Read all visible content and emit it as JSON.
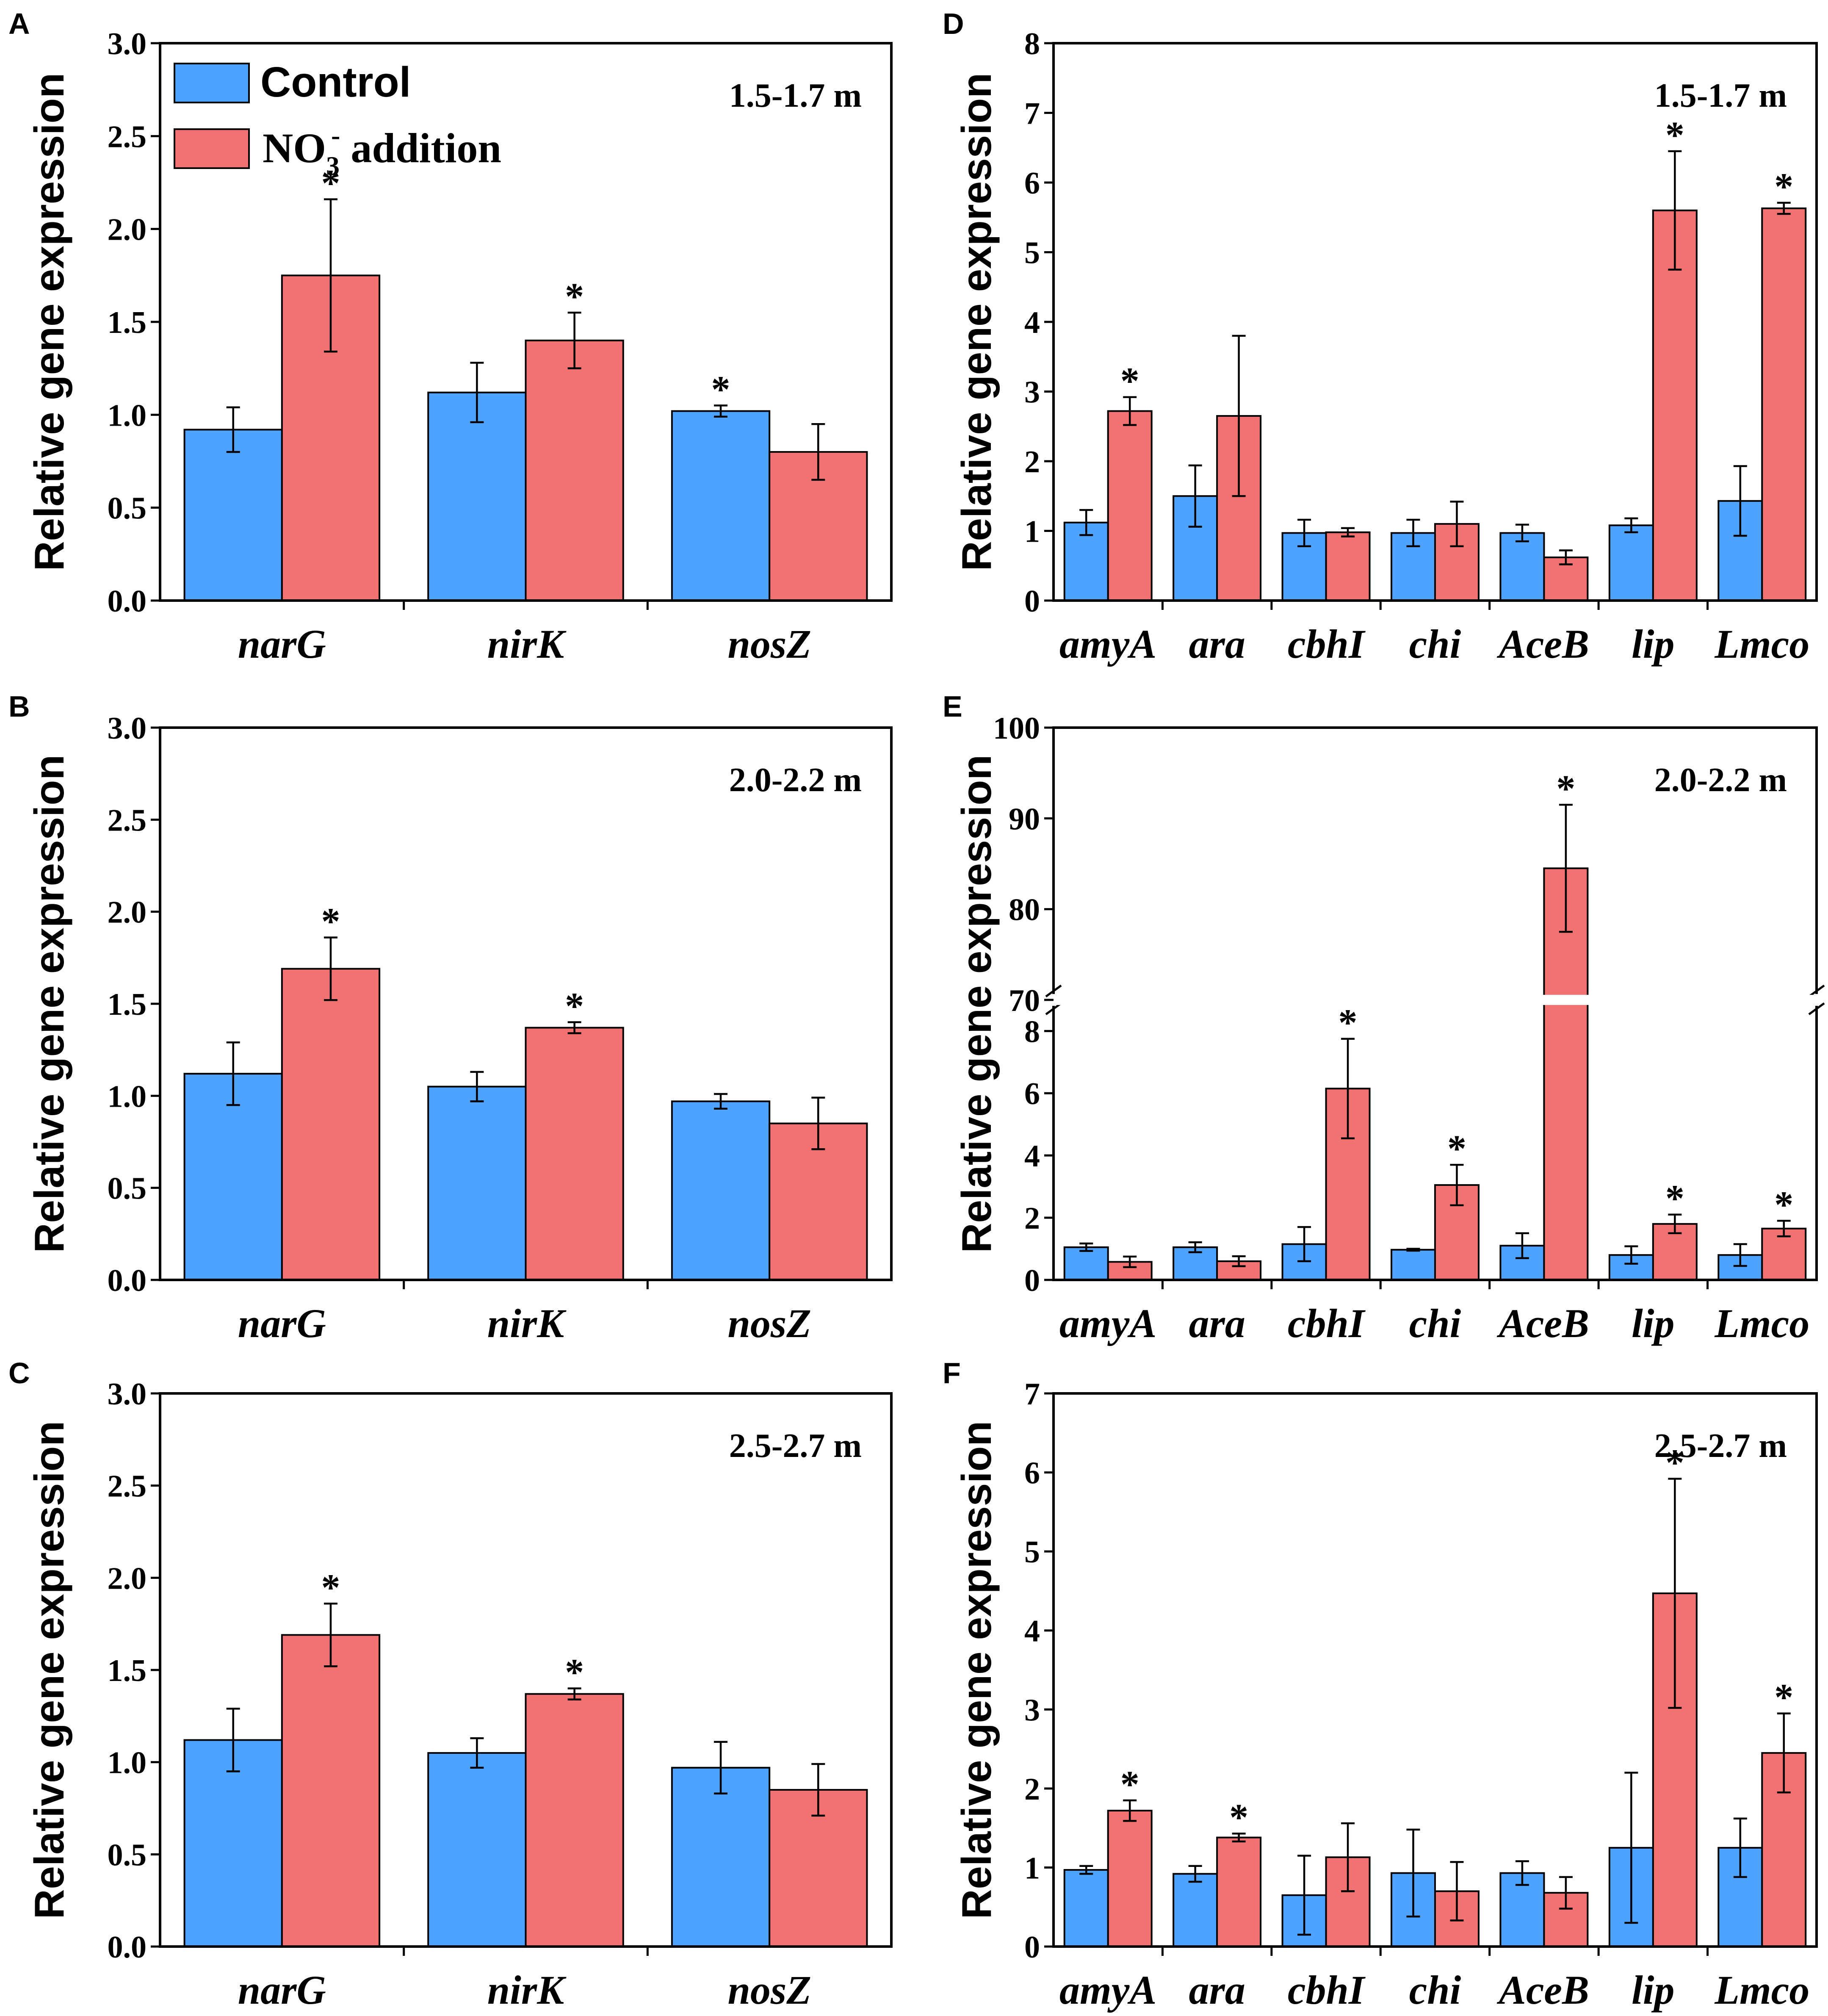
{
  "colors": {
    "control": "#4da3ff",
    "nitrate": "#f27272",
    "axis": "#000000"
  },
  "legend": {
    "control_label": "Control",
    "nitrate_label_main": "NO",
    "nitrate_label_sub": "3",
    "nitrate_label_sup": "-",
    "nitrate_label_tail": " addition"
  },
  "chart_data": [
    {
      "panel": "A",
      "type": "bar",
      "depth": "1.5-1.7 m",
      "ylabel": "Relative gene expression",
      "ylim": [
        0,
        3.0
      ],
      "yticks": [
        "0.0",
        "0.5",
        "1.0",
        "1.5",
        "2.0",
        "2.5",
        "3.0"
      ],
      "categories": [
        "narG",
        "nirK",
        "nosZ"
      ],
      "series": [
        {
          "name": "Control",
          "values": [
            0.92,
            1.12,
            1.02
          ],
          "errors": [
            0.12,
            0.16,
            0.03
          ],
          "sig": [
            false,
            false,
            true
          ]
        },
        {
          "name": "NO3- addition",
          "values": [
            1.75,
            1.4,
            0.8
          ],
          "errors": [
            0.41,
            0.15,
            0.15
          ],
          "sig": [
            true,
            true,
            false
          ]
        }
      ]
    },
    {
      "panel": "B",
      "type": "bar",
      "depth": "2.0-2.2 m",
      "ylabel": "Relative gene expression",
      "ylim": [
        0,
        3.0
      ],
      "yticks": [
        "0.0",
        "0.5",
        "1.0",
        "1.5",
        "2.0",
        "2.5",
        "3.0"
      ],
      "categories": [
        "narG",
        "nirK",
        "nosZ"
      ],
      "series": [
        {
          "name": "Control",
          "values": [
            1.12,
            1.05,
            0.97
          ],
          "errors": [
            0.17,
            0.08,
            0.04
          ],
          "sig": [
            false,
            false,
            false
          ]
        },
        {
          "name": "NO3- addition",
          "values": [
            1.69,
            1.37,
            0.85
          ],
          "errors": [
            0.17,
            0.03,
            0.14
          ],
          "sig": [
            true,
            true,
            false
          ]
        }
      ]
    },
    {
      "panel": "C",
      "type": "bar",
      "depth": "2.5-2.7 m",
      "ylabel": "Relative gene expression",
      "ylim": [
        0,
        3.0
      ],
      "yticks": [
        "0.0",
        "0.5",
        "1.0",
        "1.5",
        "2.0",
        "2.5",
        "3.0"
      ],
      "categories": [
        "narG",
        "nirK",
        "nosZ"
      ],
      "series": [
        {
          "name": "Control",
          "values": [
            1.12,
            1.05,
            0.97
          ],
          "errors": [
            0.17,
            0.08,
            0.14
          ],
          "sig": [
            false,
            false,
            false
          ]
        },
        {
          "name": "NO3- addition",
          "values": [
            1.69,
            1.37,
            0.85
          ],
          "errors": [
            0.17,
            0.03,
            0.14
          ],
          "sig": [
            true,
            true,
            false
          ]
        }
      ]
    },
    {
      "panel": "D",
      "type": "bar",
      "depth": "1.5-1.7 m",
      "ylabel": "Relative gene expression",
      "ylim": [
        0,
        8
      ],
      "yticks": [
        "0",
        "1",
        "2",
        "3",
        "4",
        "5",
        "6",
        "7",
        "8"
      ],
      "categories": [
        "amyA",
        "ara",
        "cbhI",
        "chi",
        "AceB",
        "lip",
        "Lmco"
      ],
      "series": [
        {
          "name": "Control",
          "values": [
            1.12,
            1.5,
            0.97,
            0.97,
            0.97,
            1.08,
            1.43
          ],
          "errors": [
            0.18,
            0.44,
            0.19,
            0.19,
            0.12,
            0.1,
            0.5
          ],
          "sig": [
            false,
            false,
            false,
            false,
            false,
            false,
            false
          ]
        },
        {
          "name": "NO3- addition",
          "values": [
            2.72,
            2.65,
            0.98,
            1.1,
            0.62,
            5.6,
            5.63
          ],
          "errors": [
            0.2,
            1.15,
            0.06,
            0.32,
            0.1,
            0.85,
            0.08
          ],
          "sig": [
            true,
            false,
            false,
            false,
            false,
            true,
            true
          ]
        }
      ]
    },
    {
      "panel": "E",
      "type": "bar",
      "depth": "2.0-2.2 m",
      "ylabel": "Relative gene expression",
      "broken_axis": {
        "lower": [
          0,
          9
        ],
        "upper": [
          70,
          100
        ]
      },
      "yticks_lower": [
        "0",
        "2",
        "4",
        "6",
        "8"
      ],
      "yticks_upper": [
        "70",
        "80",
        "90",
        "100"
      ],
      "categories": [
        "amyA",
        "ara",
        "cbhI",
        "chi",
        "AceB",
        "lip",
        "Lmco"
      ],
      "series": [
        {
          "name": "Control",
          "values": [
            1.05,
            1.05,
            1.15,
            0.97,
            1.1,
            0.8,
            0.8
          ],
          "errors": [
            0.12,
            0.16,
            0.55,
            0.03,
            0.4,
            0.28,
            0.35
          ],
          "sig": [
            false,
            false,
            false,
            false,
            false,
            false,
            false
          ]
        },
        {
          "name": "NO3- addition",
          "values": [
            0.58,
            0.6,
            6.15,
            3.05,
            84.5,
            1.8,
            1.65
          ],
          "errors": [
            0.17,
            0.16,
            1.6,
            0.65,
            7.0,
            0.3,
            0.25
          ],
          "sig": [
            false,
            false,
            true,
            true,
            true,
            true,
            true
          ]
        }
      ]
    },
    {
      "panel": "F",
      "type": "bar",
      "depth": "2.5-2.7 m",
      "ylabel": "Relative gene expression",
      "ylim": [
        0,
        7
      ],
      "yticks": [
        "0",
        "1",
        "2",
        "3",
        "4",
        "5",
        "6",
        "7"
      ],
      "categories": [
        "amyA",
        "ara",
        "cbhI",
        "chi",
        "AceB",
        "lip",
        "Lmco"
      ],
      "series": [
        {
          "name": "Control",
          "values": [
            0.97,
            0.92,
            0.65,
            0.93,
            0.93,
            1.25,
            1.25
          ],
          "errors": [
            0.05,
            0.1,
            0.5,
            0.55,
            0.15,
            0.95,
            0.37
          ],
          "sig": [
            false,
            false,
            false,
            false,
            false,
            false,
            false
          ]
        },
        {
          "name": "NO3- addition",
          "values": [
            1.72,
            1.38,
            1.13,
            0.7,
            0.68,
            4.47,
            2.45
          ],
          "errors": [
            0.13,
            0.05,
            0.43,
            0.37,
            0.2,
            1.45,
            0.5
          ],
          "sig": [
            true,
            true,
            false,
            false,
            false,
            true,
            true
          ]
        }
      ]
    }
  ]
}
